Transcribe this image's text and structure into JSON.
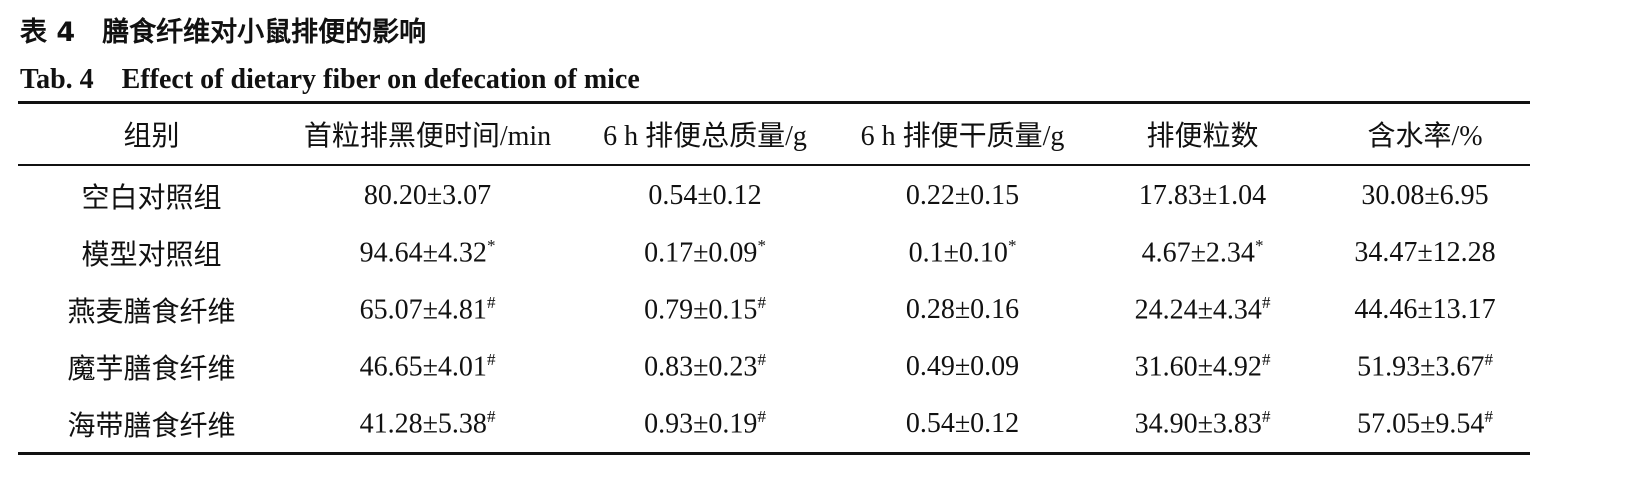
{
  "caption": {
    "cn": "表 4　膳食纤维对小鼠排便的影响",
    "en": "Tab. 4　Effect of dietary fiber on defecation of mice"
  },
  "table": {
    "headers": [
      "组别",
      "首粒排黑便时间/min",
      "6 h 排便总质量/g",
      "6 h 排便干质量/g",
      "排便粒数",
      "含水率/%"
    ],
    "rows": [
      [
        "空白对照组",
        "80.20±3.07",
        "0.54±0.12",
        "0.22±0.15",
        "17.83±1.04",
        "30.08±6.95"
      ],
      [
        "模型对照组",
        {
          "text": "94.64±4.32",
          "sup": "*"
        },
        {
          "text": "0.17±0.09",
          "sup": "*"
        },
        {
          "text": "0.1±0.10",
          "sup": "*"
        },
        {
          "text": "4.67±2.34",
          "sup": "*"
        },
        "34.47±12.28"
      ],
      [
        "燕麦膳食纤维",
        {
          "text": "65.07±4.81",
          "sup": "#"
        },
        {
          "text": "0.79±0.15",
          "sup": "#"
        },
        "0.28±0.16",
        {
          "text": "24.24±4.34",
          "sup": "#"
        },
        "44.46±13.17"
      ],
      [
        "魔芋膳食纤维",
        {
          "text": "46.65±4.01",
          "sup": "#"
        },
        {
          "text": "0.83±0.23",
          "sup": "#"
        },
        "0.49±0.09",
        {
          "text": "31.60±4.92",
          "sup": "#"
        },
        {
          "text": "51.93±3.67",
          "sup": "#"
        }
      ],
      [
        "海带膳食纤维",
        {
          "text": "41.28±5.38",
          "sup": "#"
        },
        {
          "text": "0.93±0.19",
          "sup": "#"
        },
        "0.54±0.12",
        {
          "text": "34.90±3.83",
          "sup": "#"
        },
        {
          "text": "57.05±9.54",
          "sup": "#"
        }
      ]
    ]
  }
}
